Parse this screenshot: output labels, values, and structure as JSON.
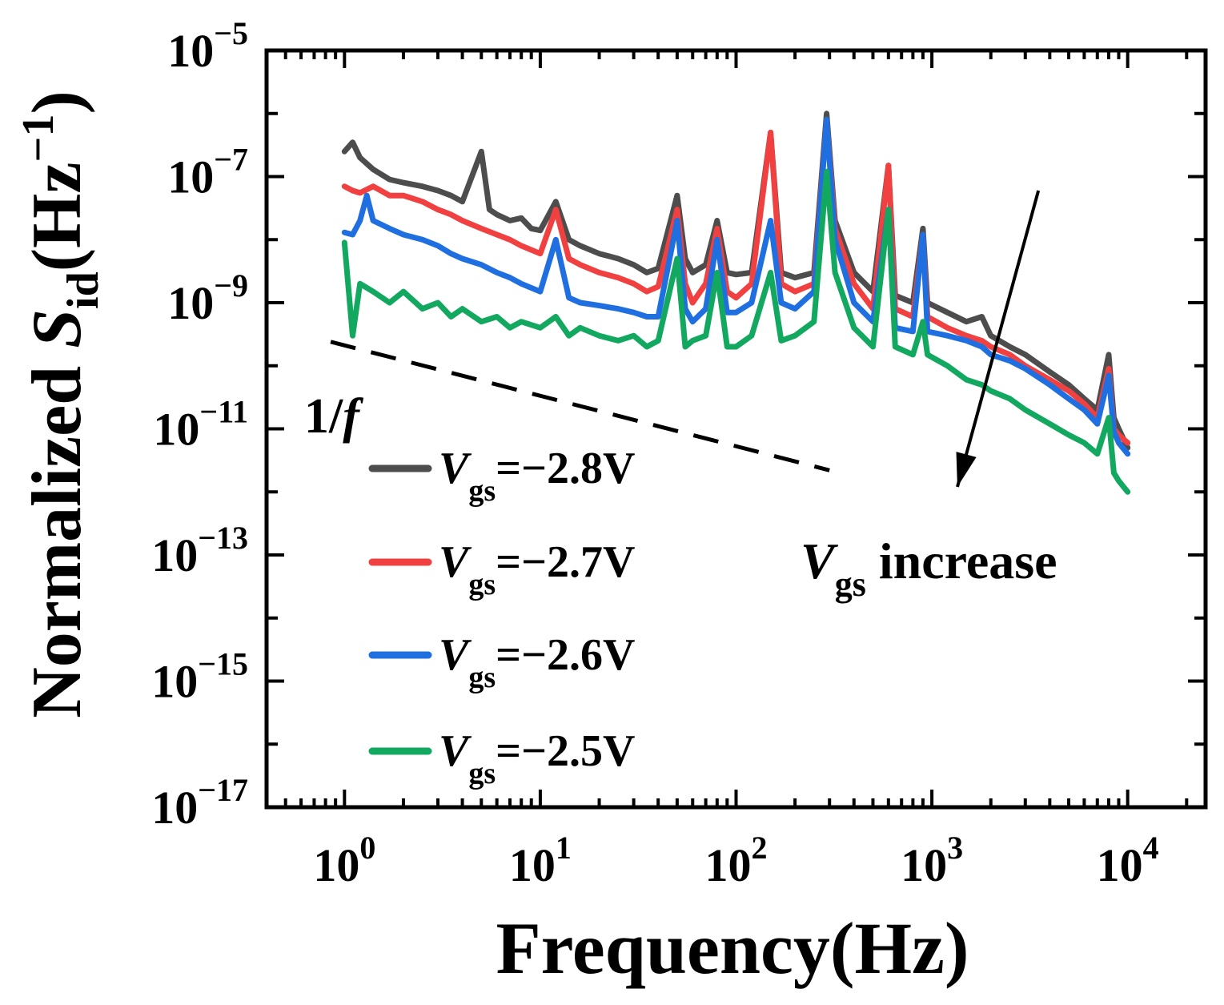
{
  "chart_data": {
    "type": "line",
    "xlabel": "Frequency(Hz)",
    "ylabel": "Normalized S_id(Hz^-1)",
    "ylabel_parts": {
      "prefix": "Normalized ",
      "symbol": "S",
      "sub": "id",
      "unit_open": "(Hz",
      "unit_sup": "−1",
      "unit_close": ")"
    },
    "xscale": "log",
    "yscale": "log",
    "xlim": [
      0.4,
      25000
    ],
    "ylim": [
      1e-17,
      1e-05
    ],
    "x_ticks": [
      {
        "base": "10",
        "exp": "0"
      },
      {
        "base": "10",
        "exp": "1"
      },
      {
        "base": "10",
        "exp": "2"
      },
      {
        "base": "10",
        "exp": "3"
      },
      {
        "base": "10",
        "exp": "4"
      }
    ],
    "y_ticks": [
      {
        "base": "10",
        "exp": "−5"
      },
      {
        "base": "10",
        "exp": "−7"
      },
      {
        "base": "10",
        "exp": "−9"
      },
      {
        "base": "10",
        "exp": "−11"
      },
      {
        "base": "10",
        "exp": "−13"
      },
      {
        "base": "10",
        "exp": "−15"
      },
      {
        "base": "10",
        "exp": "−17"
      }
    ],
    "legend_position": "lower-left",
    "grid": false,
    "annotations": {
      "slope_label": "1/f",
      "slope_line": {
        "x": [
          0.85,
          300
        ],
        "y": [
          2.4e-10,
          2.2e-12
        ]
      },
      "arrow": {
        "from": [
          3500,
          6e-08
        ],
        "to": [
          1350,
          1.2e-12
        ]
      },
      "arrow_label": {
        "symbol": "V",
        "sub": "gs",
        "text": " increase"
      }
    },
    "series": [
      {
        "name": "V_gs=−2.8V",
        "label_parts": {
          "symbol": "V",
          "sub": "gs",
          "text": "=−2.8V"
        },
        "color": "#4d4d4d",
        "points": [
          [
            1,
            2.5e-07
          ],
          [
            1.1,
            3.5e-07
          ],
          [
            1.2,
            2e-07
          ],
          [
            1.4,
            1.3e-07
          ],
          [
            1.7,
            9e-08
          ],
          [
            2,
            8e-08
          ],
          [
            2.5,
            7e-08
          ],
          [
            3,
            6e-08
          ],
          [
            3.5,
            5e-08
          ],
          [
            4,
            4e-08
          ],
          [
            5,
            2.5e-07
          ],
          [
            5.5,
            3e-08
          ],
          [
            6,
            2.5e-08
          ],
          [
            7,
            2e-08
          ],
          [
            8,
            2.2e-08
          ],
          [
            9,
            1.5e-08
          ],
          [
            10,
            1.4e-08
          ],
          [
            12,
            4e-08
          ],
          [
            14,
            1e-08
          ],
          [
            16,
            8e-09
          ],
          [
            20,
            6e-09
          ],
          [
            25,
            5e-09
          ],
          [
            30,
            4e-09
          ],
          [
            35,
            3e-09
          ],
          [
            40,
            3.5e-09
          ],
          [
            50,
            5e-08
          ],
          [
            55,
            5e-09
          ],
          [
            60,
            3e-09
          ],
          [
            70,
            4e-09
          ],
          [
            80,
            2e-08
          ],
          [
            90,
            3e-09
          ],
          [
            100,
            2.8e-09
          ],
          [
            120,
            3e-09
          ],
          [
            150,
            5e-07
          ],
          [
            170,
            3e-09
          ],
          [
            200,
            2.5e-09
          ],
          [
            250,
            3e-09
          ],
          [
            290,
            1e-06
          ],
          [
            320,
            2e-08
          ],
          [
            400,
            3e-09
          ],
          [
            500,
            1.5e-09
          ],
          [
            600,
            1.5e-07
          ],
          [
            650,
            1.3e-09
          ],
          [
            800,
            1e-09
          ],
          [
            900,
            1.5e-08
          ],
          [
            950,
            1e-09
          ],
          [
            1200,
            7e-10
          ],
          [
            1500,
            5e-10
          ],
          [
            1800,
            6e-10
          ],
          [
            2000,
            3e-10
          ],
          [
            2500,
            2e-10
          ],
          [
            3000,
            1.5e-10
          ],
          [
            4000,
            8e-11
          ],
          [
            5000,
            5e-11
          ],
          [
            6000,
            3e-11
          ],
          [
            7000,
            2e-11
          ],
          [
            8000,
            1.5e-10
          ],
          [
            8500,
            1.5e-11
          ],
          [
            9000,
            1e-11
          ],
          [
            10000,
            5e-12
          ]
        ]
      },
      {
        "name": "V_gs=−2.7V",
        "label_parts": {
          "symbol": "V",
          "sub": "gs",
          "text": "=−2.7V"
        },
        "color": "#f04040",
        "points": [
          [
            1,
            7e-08
          ],
          [
            1.1,
            6e-08
          ],
          [
            1.2,
            5.5e-08
          ],
          [
            1.4,
            7e-08
          ],
          [
            1.7,
            5e-08
          ],
          [
            2,
            5e-08
          ],
          [
            2.5,
            4e-08
          ],
          [
            3,
            3e-08
          ],
          [
            3.5,
            2.5e-08
          ],
          [
            4,
            2e-08
          ],
          [
            5,
            1.5e-08
          ],
          [
            6,
            1.2e-08
          ],
          [
            7,
            1e-08
          ],
          [
            8,
            8e-09
          ],
          [
            10,
            6e-09
          ],
          [
            12,
            3e-08
          ],
          [
            14,
            5e-09
          ],
          [
            16,
            4e-09
          ],
          [
            20,
            3e-09
          ],
          [
            25,
            2.5e-09
          ],
          [
            30,
            2e-09
          ],
          [
            35,
            1.5e-09
          ],
          [
            40,
            1.8e-09
          ],
          [
            50,
            3e-08
          ],
          [
            55,
            2e-09
          ],
          [
            60,
            1e-09
          ],
          [
            70,
            2e-09
          ],
          [
            80,
            1.5e-08
          ],
          [
            90,
            1.5e-09
          ],
          [
            100,
            1.2e-09
          ],
          [
            120,
            2e-09
          ],
          [
            150,
            5e-07
          ],
          [
            170,
            2e-09
          ],
          [
            200,
            1.5e-09
          ],
          [
            250,
            2e-09
          ],
          [
            290,
            8e-07
          ],
          [
            320,
            1.5e-08
          ],
          [
            400,
            2e-09
          ],
          [
            500,
            8e-10
          ],
          [
            600,
            1.5e-07
          ],
          [
            650,
            8e-10
          ],
          [
            800,
            6e-10
          ],
          [
            900,
            1.2e-08
          ],
          [
            950,
            6e-10
          ],
          [
            1200,
            4e-10
          ],
          [
            1500,
            3e-10
          ],
          [
            1800,
            2.5e-10
          ],
          [
            2000,
            2e-10
          ],
          [
            2500,
            1.5e-10
          ],
          [
            3000,
            1e-10
          ],
          [
            4000,
            6e-11
          ],
          [
            5000,
            4e-11
          ],
          [
            6000,
            2.5e-11
          ],
          [
            7000,
            1.5e-11
          ],
          [
            8000,
            9e-11
          ],
          [
            8500,
            1e-11
          ],
          [
            9000,
            8e-12
          ],
          [
            10000,
            6e-12
          ]
        ]
      },
      {
        "name": "V_gs=−2.6V",
        "label_parts": {
          "symbol": "V",
          "sub": "gs",
          "text": "=−2.6V"
        },
        "color": "#1f6fe0",
        "points": [
          [
            1,
            1.3e-08
          ],
          [
            1.1,
            1.2e-08
          ],
          [
            1.2,
            2e-08
          ],
          [
            1.3,
            5e-08
          ],
          [
            1.4,
            2e-08
          ],
          [
            1.7,
            1.5e-08
          ],
          [
            2,
            1.2e-08
          ],
          [
            2.5,
            1e-08
          ],
          [
            3,
            8e-09
          ],
          [
            3.5,
            6e-09
          ],
          [
            4,
            5e-09
          ],
          [
            5,
            4e-09
          ],
          [
            6,
            3e-09
          ],
          [
            7,
            2.5e-09
          ],
          [
            8,
            2e-09
          ],
          [
            10,
            1.5e-09
          ],
          [
            12,
            1e-08
          ],
          [
            14,
            1.2e-09
          ],
          [
            16,
            1e-09
          ],
          [
            20,
            9e-10
          ],
          [
            25,
            8e-10
          ],
          [
            30,
            7e-10
          ],
          [
            35,
            6e-10
          ],
          [
            40,
            6e-10
          ],
          [
            50,
            2e-08
          ],
          [
            55,
            8e-10
          ],
          [
            60,
            5e-10
          ],
          [
            70,
            8e-10
          ],
          [
            80,
            1e-08
          ],
          [
            90,
            7e-10
          ],
          [
            100,
            7e-10
          ],
          [
            120,
            1e-09
          ],
          [
            150,
            2e-08
          ],
          [
            170,
            1e-09
          ],
          [
            200,
            8e-10
          ],
          [
            250,
            1.5e-09
          ],
          [
            290,
            8e-07
          ],
          [
            320,
            1e-08
          ],
          [
            400,
            1e-09
          ],
          [
            500,
            5e-10
          ],
          [
            600,
            3e-08
          ],
          [
            650,
            4e-10
          ],
          [
            800,
            3.5e-10
          ],
          [
            900,
            1.2e-08
          ],
          [
            950,
            3.5e-10
          ],
          [
            1200,
            3e-10
          ],
          [
            1500,
            2.5e-10
          ],
          [
            1800,
            2e-10
          ],
          [
            2000,
            1.5e-10
          ],
          [
            2500,
            1.2e-10
          ],
          [
            3000,
            9e-11
          ],
          [
            4000,
            5e-11
          ],
          [
            5000,
            3e-11
          ],
          [
            6000,
            2e-11
          ],
          [
            7000,
            1.2e-11
          ],
          [
            8000,
            7e-11
          ],
          [
            8500,
            9e-12
          ],
          [
            9000,
            6e-12
          ],
          [
            10000,
            4e-12
          ]
        ]
      },
      {
        "name": "V_gs=−2.5V",
        "label_parts": {
          "symbol": "V",
          "sub": "gs",
          "text": "=−2.5V"
        },
        "color": "#12a860",
        "points": [
          [
            1,
            9e-09
          ],
          [
            1.1,
            3e-10
          ],
          [
            1.2,
            2e-09
          ],
          [
            1.4,
            1.5e-09
          ],
          [
            1.7,
            1e-09
          ],
          [
            2,
            1.5e-09
          ],
          [
            2.5,
            8e-10
          ],
          [
            3,
            1e-09
          ],
          [
            3.5,
            6e-10
          ],
          [
            4,
            8e-10
          ],
          [
            5,
            5e-10
          ],
          [
            6,
            6e-10
          ],
          [
            7,
            4e-10
          ],
          [
            8,
            5e-10
          ],
          [
            10,
            4e-10
          ],
          [
            12,
            6e-10
          ],
          [
            14,
            3e-10
          ],
          [
            16,
            4e-10
          ],
          [
            20,
            3e-10
          ],
          [
            25,
            2.5e-10
          ],
          [
            30,
            3e-10
          ],
          [
            35,
            2e-10
          ],
          [
            40,
            2.5e-10
          ],
          [
            50,
            5e-09
          ],
          [
            55,
            2e-10
          ],
          [
            60,
            2.5e-10
          ],
          [
            70,
            3e-10
          ],
          [
            80,
            3e-09
          ],
          [
            90,
            2e-10
          ],
          [
            100,
            2e-10
          ],
          [
            120,
            3e-10
          ],
          [
            150,
            3e-09
          ],
          [
            170,
            2.5e-10
          ],
          [
            200,
            3e-10
          ],
          [
            250,
            5e-10
          ],
          [
            290,
            1.2e-07
          ],
          [
            320,
            3e-09
          ],
          [
            400,
            4e-10
          ],
          [
            500,
            2e-10
          ],
          [
            600,
            3e-08
          ],
          [
            650,
            2e-10
          ],
          [
            800,
            1.5e-10
          ],
          [
            900,
            5e-10
          ],
          [
            950,
            1.5e-10
          ],
          [
            1200,
            1e-10
          ],
          [
            1500,
            6e-11
          ],
          [
            1800,
            5e-11
          ],
          [
            2000,
            4e-11
          ],
          [
            2500,
            3e-11
          ],
          [
            3000,
            2e-11
          ],
          [
            4000,
            1.2e-11
          ],
          [
            5000,
            8e-12
          ],
          [
            6000,
            6e-12
          ],
          [
            7000,
            4e-12
          ],
          [
            8000,
            1.5e-11
          ],
          [
            8500,
            2e-12
          ],
          [
            9000,
            1.5e-12
          ],
          [
            10000,
            1e-12
          ]
        ]
      }
    ]
  }
}
